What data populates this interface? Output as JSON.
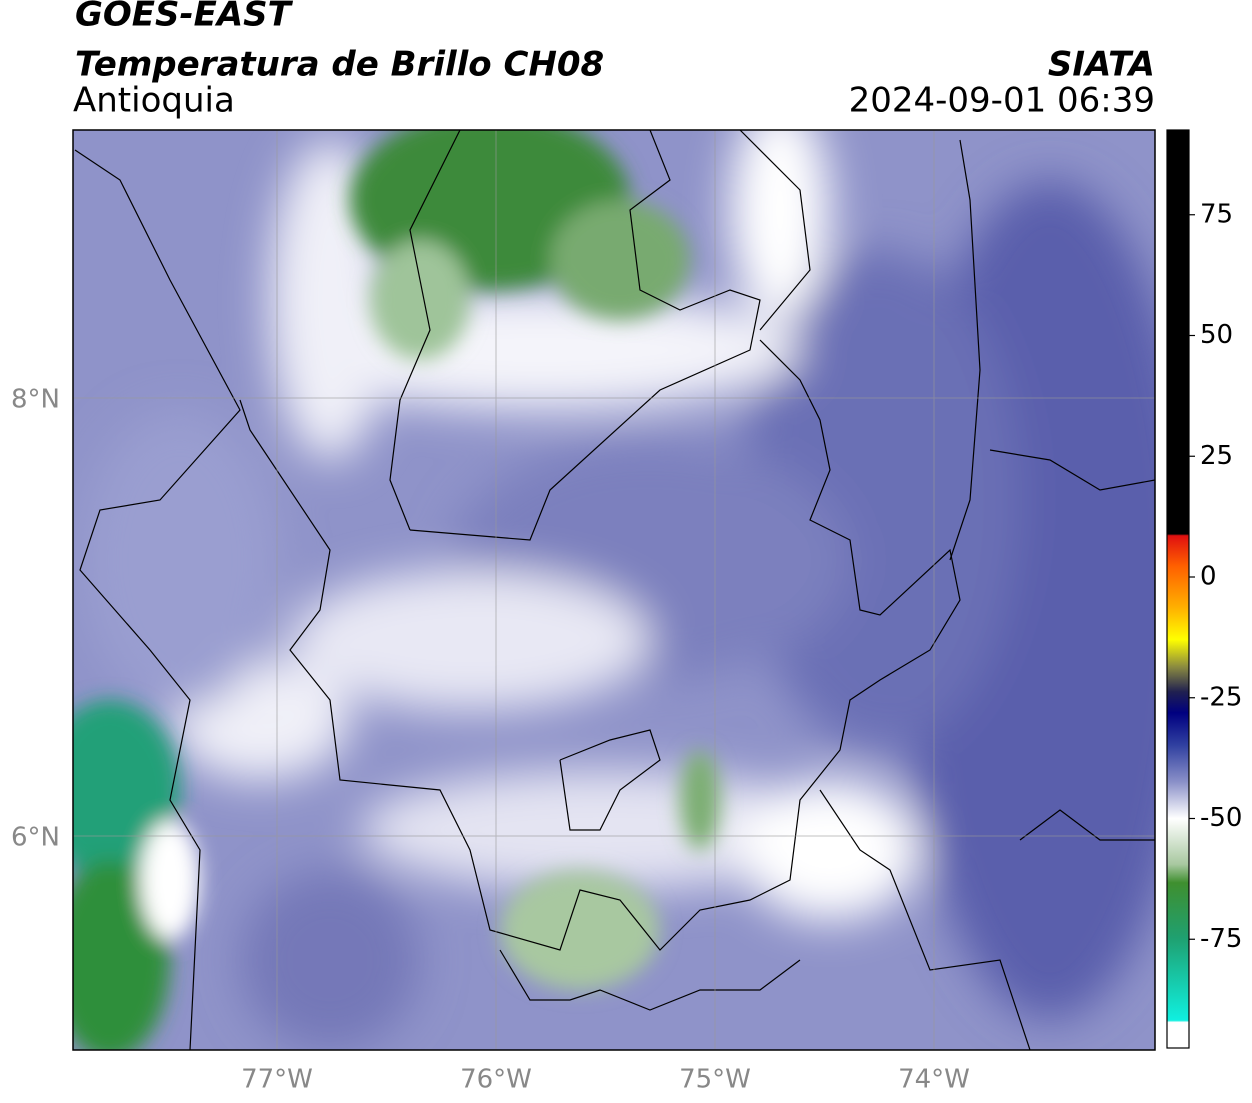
{
  "header": {
    "source": "GOES-EAST",
    "product": "Temperatura de Brillo CH08",
    "region": "Antioquia",
    "agency": "SIATA",
    "datetime": "2024-09-01 06:39"
  },
  "map": {
    "lon_labels": [
      "77°W",
      "76°W",
      "75°W",
      "74°W"
    ],
    "lat_labels": [
      "8°N",
      "6°N"
    ]
  },
  "colorbar": {
    "ticks": [
      75,
      50,
      25,
      0,
      -25,
      -50,
      -75
    ]
  }
}
